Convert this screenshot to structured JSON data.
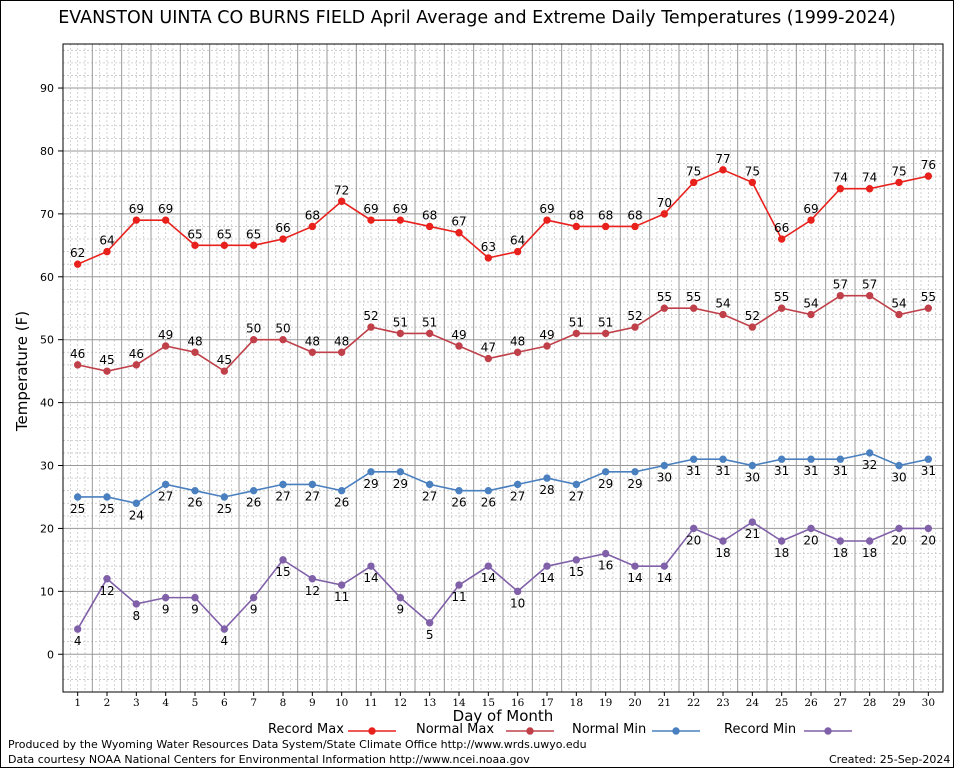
{
  "title": "EVANSTON UINTA CO BURNS FIELD April Average and Extreme Daily Temperatures (1999-2024)",
  "footer": {
    "line1": "Produced by the Wyoming Water Resources Data System/State Climate Office http://www.wrds.uwyo.edu",
    "line2": "Data courtesy NOAA National Centers for Environmental Information http://www.ncei.noaa.gov",
    "created": "Created:  25-Sep-2024"
  },
  "chart_data": {
    "type": "line",
    "title": "EVANSTON UINTA CO BURNS FIELD April Average and Extreme Daily Temperatures (1999-2024)",
    "xlabel": "Day of Month",
    "ylabel": "Temperature (F)",
    "xlim": [
      0.5,
      30.5
    ],
    "ylim": [
      -6,
      97
    ],
    "yticks": [
      0,
      10,
      20,
      30,
      40,
      50,
      60,
      70,
      80,
      90
    ],
    "x": [
      1,
      2,
      3,
      4,
      5,
      6,
      7,
      8,
      9,
      10,
      11,
      12,
      13,
      14,
      15,
      16,
      17,
      18,
      19,
      20,
      21,
      22,
      23,
      24,
      25,
      26,
      27,
      28,
      29,
      30
    ],
    "grid": true,
    "legend_position": "bottom",
    "series": [
      {
        "name": "Record Max",
        "color": "#e8211d",
        "label_pos": "above",
        "values": [
          62,
          64,
          69,
          69,
          65,
          65,
          65,
          66,
          68,
          72,
          69,
          69,
          68,
          67,
          63,
          64,
          69,
          68,
          68,
          68,
          70,
          75,
          77,
          75,
          66,
          69,
          74,
          74,
          75,
          76
        ]
      },
      {
        "name": "Normal Max",
        "color": "#c0404a",
        "label_pos": "above",
        "values": [
          46,
          45,
          46,
          49,
          48,
          45,
          50,
          50,
          48,
          48,
          52,
          51,
          51,
          49,
          47,
          48,
          49,
          51,
          51,
          52,
          55,
          55,
          54,
          52,
          55,
          54,
          57,
          57,
          54,
          55
        ]
      },
      {
        "name": "Normal Min",
        "color": "#4a80c0",
        "label_pos": "below",
        "values": [
          25,
          25,
          24,
          27,
          26,
          25,
          26,
          27,
          27,
          26,
          29,
          29,
          27,
          26,
          26,
          27,
          28,
          27,
          29,
          29,
          30,
          31,
          31,
          30,
          31,
          31,
          31,
          32,
          30,
          31
        ]
      },
      {
        "name": "Record Min",
        "color": "#8060a8",
        "label_pos": "below",
        "values": [
          4,
          12,
          8,
          9,
          9,
          4,
          9,
          15,
          12,
          11,
          14,
          9,
          5,
          11,
          14,
          10,
          14,
          15,
          16,
          14,
          14,
          20,
          18,
          21,
          18,
          20,
          18,
          18,
          20,
          20
        ]
      }
    ]
  }
}
